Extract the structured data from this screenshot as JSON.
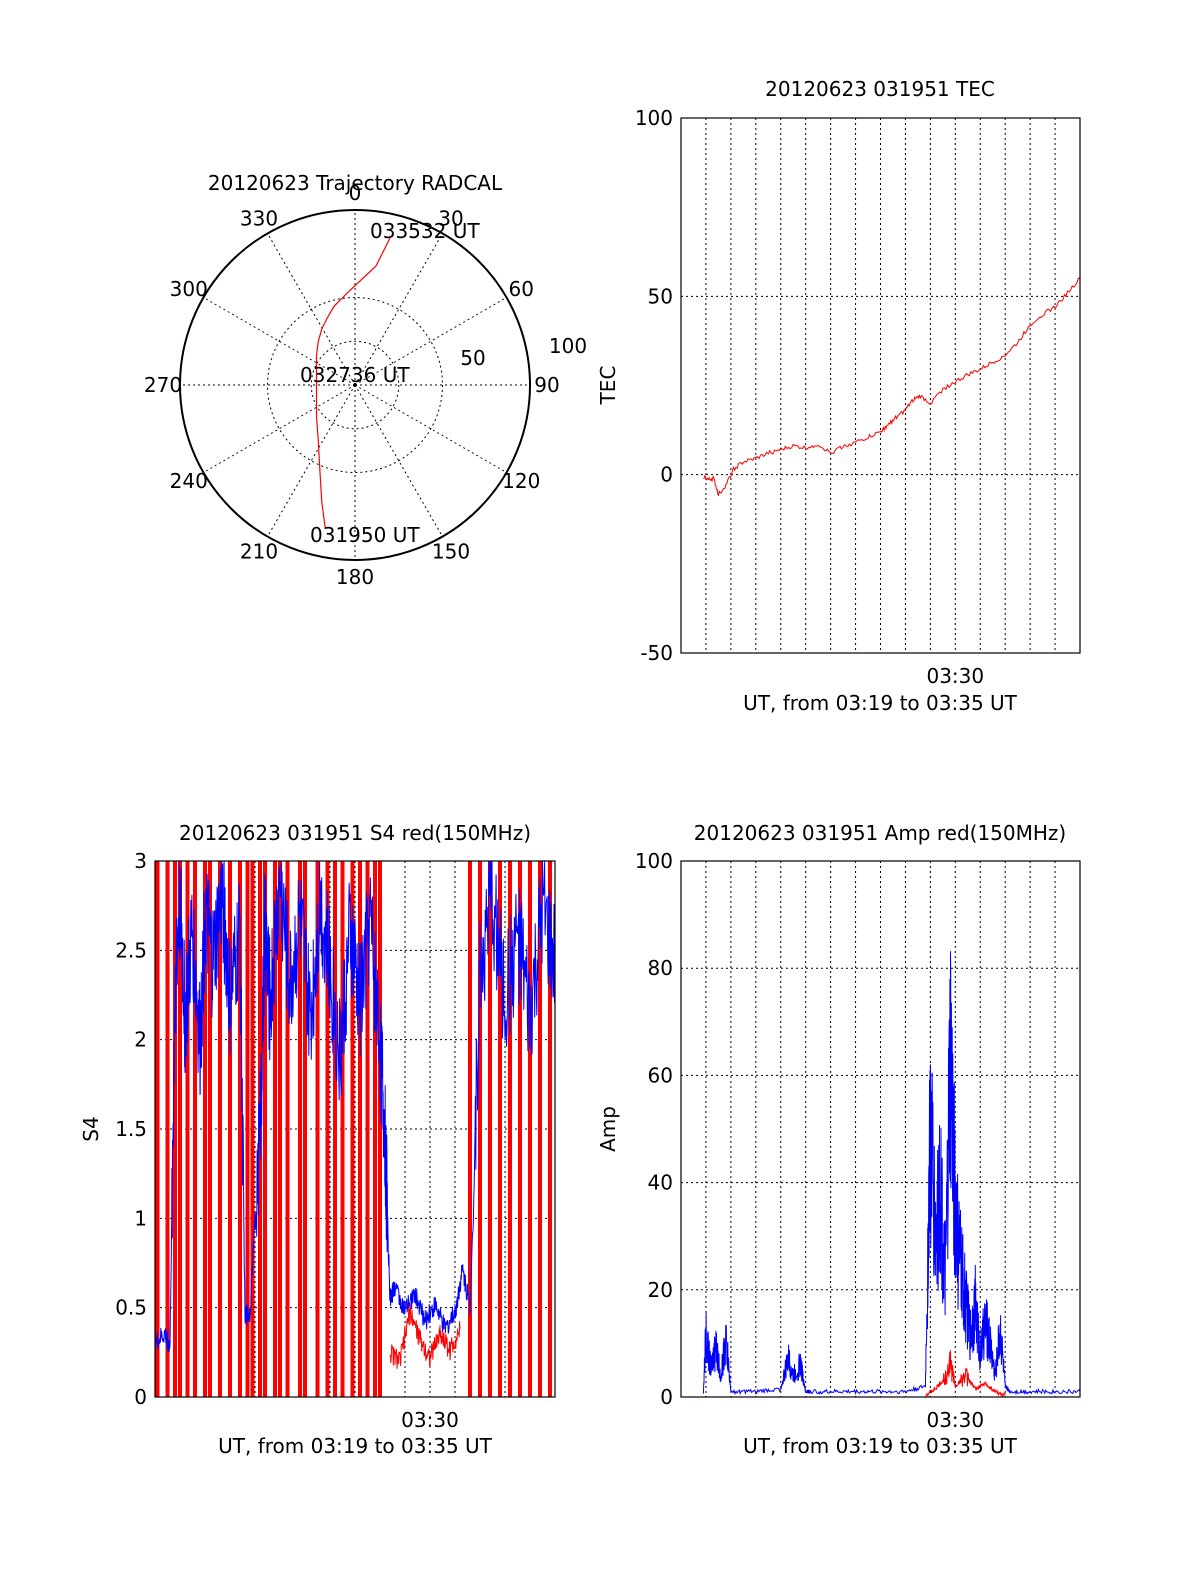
{
  "chart_data": [
    {
      "type": "polar-trajectory",
      "title": "20120623 Trajectory RADCAL",
      "angle_labels": [
        "0",
        "30",
        "60",
        "90",
        "120",
        "150",
        "180",
        "210",
        "240",
        "270",
        "300",
        "330"
      ],
      "radial_labels": [
        "50",
        "100"
      ],
      "rlim": [
        0,
        100
      ],
      "angle_zero": "top",
      "angle_direction": "clockwise",
      "annotations": [
        "033532 UT",
        "032736 UT",
        "031950 UT"
      ],
      "series": [
        {
          "color": "#ff0000",
          "points": [
            [
              20,
              84
            ],
            [
              12,
              68
            ],
            [
              -3,
              54
            ],
            [
              -12,
              45
            ],
            [
              -16,
              38
            ],
            [
              -19,
              32
            ],
            [
              -21,
              25
            ],
            [
              -22,
              17
            ],
            [
              -22,
              9
            ],
            [
              -22,
              3
            ],
            [
              -22,
              -6
            ],
            [
              -22,
              -18
            ],
            [
              -21,
              -32
            ],
            [
              -20,
              -50
            ],
            [
              -19,
              -67
            ],
            [
              -17,
              -82
            ]
          ]
        }
      ]
    },
    {
      "type": "line",
      "title": "20120623 031951 TEC",
      "xlabel": "UT, from 03:19 to 03:35 UT",
      "ylabel": "TEC",
      "xlim": [
        0,
        16
      ],
      "ylim": [
        -50,
        100
      ],
      "yticks": [
        "-50",
        "0",
        "50",
        "100"
      ],
      "xtick_label": "03:30",
      "xtick_label_at": 11,
      "grid": true,
      "series": [
        {
          "color": "#ff0000",
          "x": [
            0.9,
            1.1,
            1.3,
            1.5,
            1.8,
            2.1,
            2.5,
            3.0,
            3.5,
            4.0,
            4.5,
            5.0,
            5.5,
            6.0,
            6.5,
            7.0,
            7.5,
            8.0,
            8.3,
            8.6,
            9.0,
            9.3,
            9.6,
            10.0,
            10.5,
            11.0,
            11.5,
            12.0,
            12.5,
            13.0,
            13.5,
            14.0,
            14.5,
            15.0,
            15.5,
            16.0
          ],
          "y": [
            -0.5,
            -1.5,
            -1.0,
            -5.5,
            -3.0,
            1.5,
            3.5,
            4.5,
            6.0,
            7.0,
            8.0,
            7.5,
            8.5,
            6.0,
            8.0,
            9.0,
            10.5,
            12.0,
            14.0,
            16.0,
            18.0,
            21.0,
            22.0,
            20.0,
            24.0,
            26.0,
            28.0,
            29.5,
            31.5,
            33.5,
            37.0,
            42.0,
            45.0,
            47.0,
            51.0,
            55.0
          ]
        }
      ]
    },
    {
      "type": "line",
      "title": "20120623 031951 S4 red(150MHz)",
      "xlabel": "UT, from 03:19 to 03:35 UT",
      "ylabel": "S4",
      "xlim": [
        0,
        16
      ],
      "ylim": [
        0,
        3
      ],
      "yticks": [
        "0",
        "0.5",
        "1",
        "1.5",
        "2",
        "2.5",
        "3"
      ],
      "xtick_label": "03:30",
      "xtick_label_at": 11,
      "grid": true,
      "red_spikes_x": [
        0.1,
        0.5,
        0.8,
        1.0,
        1.3,
        1.6,
        2.0,
        2.2,
        2.6,
        3.0,
        3.4,
        3.7,
        3.9,
        4.2,
        4.4,
        4.8,
        5.0,
        5.3,
        5.8,
        6.0,
        6.5,
        6.9,
        7.2,
        7.5,
        7.9,
        8.2,
        8.5,
        8.8,
        9.0,
        12.6,
        13.0,
        13.4,
        13.8,
        14.2,
        14.6,
        15.0,
        15.4,
        15.8
      ],
      "series": [
        {
          "color": "#0000ff",
          "x": [
            0.0,
            0.4,
            0.6,
            0.8,
            1.0,
            1.2,
            1.5,
            1.8,
            2.0,
            2.3,
            2.7,
            3.0,
            3.4,
            3.6,
            3.8,
            4.2,
            4.4,
            4.6,
            5.0,
            5.4,
            5.8,
            6.2,
            6.6,
            7.0,
            7.4,
            7.8,
            8.2,
            8.6,
            9.0,
            9.2,
            9.4,
            9.6,
            10.0,
            10.4,
            10.8,
            11.2,
            11.6,
            12.0,
            12.3,
            12.6,
            13.0,
            13.5,
            14.0,
            14.5,
            15.0,
            15.5,
            16.0
          ],
          "y": [
            0.3,
            0.35,
            0.28,
            2.3,
            2.8,
            2.1,
            2.6,
            1.95,
            2.7,
            2.4,
            2.8,
            2.2,
            2.6,
            0.45,
            0.48,
            1.5,
            2.6,
            2.2,
            2.9,
            2.3,
            2.7,
            2.1,
            2.8,
            2.4,
            1.9,
            2.6,
            2.2,
            2.7,
            2.0,
            1.45,
            0.55,
            0.62,
            0.48,
            0.58,
            0.42,
            0.52,
            0.38,
            0.47,
            0.72,
            0.5,
            2.4,
            2.8,
            2.2,
            2.6,
            2.1,
            2.7,
            2.4
          ]
        },
        {
          "color": "#ff0000",
          "x": [
            9.4,
            9.8,
            10.2,
            10.6,
            11.0,
            11.4,
            11.8,
            12.2
          ],
          "y": [
            0.25,
            0.2,
            0.48,
            0.32,
            0.22,
            0.36,
            0.26,
            0.38
          ]
        }
      ]
    },
    {
      "type": "line",
      "title": "20120623 031951 Amp red(150MHz)",
      "xlabel": "UT, from 03:19 to 03:35 UT",
      "ylabel": "Amp",
      "xlim": [
        0,
        16
      ],
      "ylim": [
        0,
        100
      ],
      "yticks": [
        "0",
        "20",
        "40",
        "60",
        "80",
        "100"
      ],
      "xtick_label": "03:30",
      "xtick_label_at": 11,
      "grid": true,
      "series": [
        {
          "color": "#0000ff",
          "x": [
            0.9,
            1.0,
            1.2,
            1.4,
            1.6,
            1.8,
            2.0,
            3.0,
            4.0,
            4.3,
            4.5,
            4.8,
            5.0,
            5.2,
            6.0,
            7.0,
            8.0,
            9.0,
            9.8,
            10.0,
            10.2,
            10.4,
            10.6,
            10.8,
            11.0,
            11.2,
            11.4,
            11.6,
            11.8,
            12.0,
            12.2,
            12.4,
            12.6,
            12.8,
            13.0,
            13.2,
            14.0,
            15.0,
            16.0
          ],
          "y": [
            1,
            12,
            5,
            9,
            4,
            11,
            1,
            1,
            1.5,
            7,
            4,
            6,
            1,
            1,
            1,
            1,
            1,
            1,
            2,
            52,
            30,
            40,
            20,
            62,
            35,
            25,
            18,
            12,
            17,
            8,
            14,
            10,
            4,
            13,
            2,
            1,
            1,
            1,
            1
          ]
        },
        {
          "color": "#ff0000",
          "x": [
            9.8,
            10.2,
            10.6,
            10.8,
            11.0,
            11.4,
            11.8,
            12.2,
            12.6,
            13.0
          ],
          "y": [
            0.3,
            1.5,
            3.5,
            6.5,
            2.0,
            4.0,
            1.5,
            2.5,
            1.0,
            0.3
          ]
        }
      ]
    }
  ]
}
